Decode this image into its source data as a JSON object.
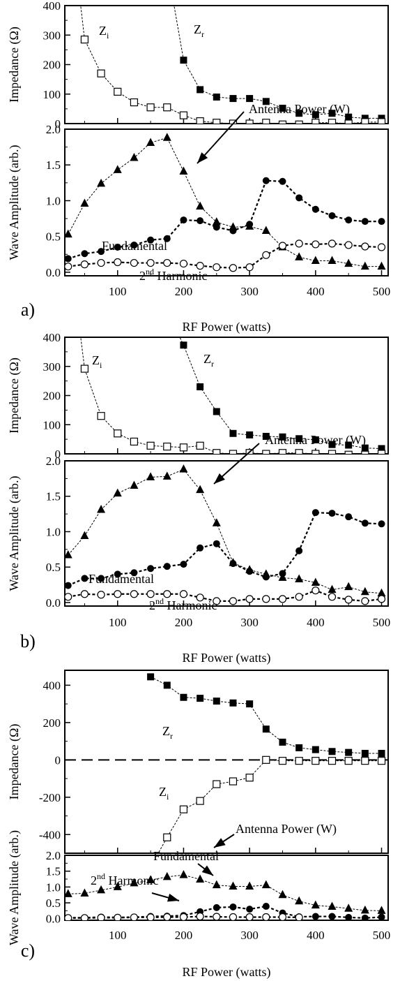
{
  "chart_data": [
    {
      "panel": "a)",
      "type": "line",
      "xlabel": "RF Power (watts)",
      "xlim": [
        20,
        510
      ],
      "xticks": [
        100,
        200,
        300,
        400,
        500
      ],
      "impedance": {
        "ylabel": "Impedance (Ω)",
        "ylim": [
          0,
          400
        ],
        "yticks": [
          0,
          100,
          200,
          300,
          400
        ],
        "series": [
          {
            "name": "Zr",
            "label_main": "Z",
            "label_sub": "r",
            "marker": "square-filled",
            "x": [
              200,
              225,
              250,
              275,
              300,
              325,
              350,
              375,
              400,
              425,
              450,
              475,
              500
            ],
            "y": [
              215,
              115,
              90,
              85,
              85,
              75,
              52,
              35,
              30,
              35,
              22,
              18,
              18
            ],
            "extend_to": [
              184,
              420
            ]
          },
          {
            "name": "Zi",
            "label_main": "Z",
            "label_sub": "i",
            "marker": "square-open",
            "x": [
              50,
              75,
              100,
              125,
              150,
              175,
              200,
              225,
              250,
              275,
              300,
              325,
              350,
              375,
              400,
              425,
              450,
              475,
              500
            ],
            "y": [
              285,
              170,
              108,
              72,
              55,
              55,
              28,
              8,
              3,
              0,
              0,
              3,
              -3,
              -3,
              3,
              3,
              0,
              5,
              5
            ],
            "extend_to": [
              43,
              420
            ]
          }
        ]
      },
      "wave": {
        "ylabel": "Wave Amplitude (arb.)",
        "ylim": [
          -0.05,
          2.0
        ],
        "yticks": [
          0.0,
          0.5,
          1.0,
          1.5,
          2.0
        ],
        "series": [
          {
            "name": "Antenna Power (W)",
            "marker": "triangle-filled",
            "x": [
              25,
              50,
              75,
              100,
              125,
              150,
              175,
              200,
              225,
              250,
              275,
              300,
              325,
              350,
              375,
              400,
              425,
              450,
              475,
              500
            ],
            "y": [
              0.53,
              0.96,
              1.24,
              1.43,
              1.6,
              1.81,
              1.88,
              1.41,
              0.92,
              0.7,
              0.63,
              0.64,
              0.58,
              0.35,
              0.21,
              0.16,
              0.16,
              0.12,
              0.08,
              0.08
            ]
          },
          {
            "name": "Fundamental",
            "marker": "circle-filled",
            "x": [
              25,
              50,
              75,
              100,
              125,
              150,
              175,
              200,
              225,
              250,
              275,
              300,
              325,
              350,
              375,
              400,
              425,
              450,
              475,
              500
            ],
            "y": [
              0.19,
              0.26,
              0.29,
              0.35,
              0.38,
              0.45,
              0.47,
              0.73,
              0.72,
              0.63,
              0.58,
              0.67,
              1.28,
              1.27,
              1.04,
              0.88,
              0.79,
              0.73,
              0.71,
              0.71
            ]
          },
          {
            "name": "2nd Harmonic",
            "label_main": "2",
            "label_sup": "nd",
            "label_rest": " Harmonic",
            "marker": "circle-open",
            "x": [
              25,
              50,
              75,
              100,
              125,
              150,
              175,
              200,
              225,
              250,
              275,
              300,
              325,
              350,
              375,
              400,
              425,
              450,
              475,
              500
            ],
            "y": [
              0.08,
              0.11,
              0.13,
              0.14,
              0.13,
              0.13,
              0.13,
              0.12,
              0.09,
              0.07,
              0.06,
              0.07,
              0.24,
              0.37,
              0.4,
              0.39,
              0.4,
              0.38,
              0.36,
              0.35
            ]
          }
        ]
      }
    },
    {
      "panel": "b)",
      "type": "line",
      "xlabel": "RF Power (watts)",
      "xlim": [
        20,
        510
      ],
      "xticks": [
        100,
        200,
        300,
        400,
        500
      ],
      "impedance": {
        "ylabel": "Impedance (Ω)",
        "ylim": [
          0,
          400
        ],
        "yticks": [
          0,
          100,
          200,
          300,
          400
        ],
        "series": [
          {
            "name": "Zr",
            "label_main": "Z",
            "label_sub": "r",
            "marker": "square-filled",
            "x": [
              200,
              225,
              250,
              275,
              300,
              325,
              350,
              375,
              400,
              425,
              450,
              475,
              500
            ],
            "y": [
              373,
              230,
              145,
              70,
              65,
              60,
              58,
              52,
              48,
              32,
              30,
              20,
              18
            ],
            "extend_to": [
              190,
              420
            ]
          },
          {
            "name": "Zi",
            "label_main": "Z",
            "label_sub": "i",
            "marker": "square-open",
            "x": [
              50,
              75,
              100,
              125,
              150,
              175,
              200,
              225,
              250,
              275,
              300,
              325,
              350,
              375,
              400,
              425,
              450,
              475,
              500
            ],
            "y": [
              292,
              130,
              70,
              42,
              28,
              25,
              22,
              28,
              3,
              0,
              3,
              0,
              3,
              3,
              0,
              0,
              -3,
              -3,
              0
            ],
            "extend_to": [
              43,
              420
            ]
          }
        ]
      },
      "wave": {
        "ylabel": "Wave Amplitude (arb.)",
        "ylim": [
          -0.05,
          2.0
        ],
        "yticks": [
          0.0,
          0.5,
          1.0,
          1.5,
          2.0
        ],
        "series": [
          {
            "name": "Antenna Power (W)",
            "marker": "triangle-filled",
            "x": [
              25,
              50,
              75,
              100,
              125,
              150,
              175,
              200,
              225,
              250,
              275,
              300,
              325,
              350,
              375,
              400,
              425,
              450,
              475,
              500
            ],
            "y": [
              0.67,
              0.94,
              1.31,
              1.54,
              1.65,
              1.77,
              1.78,
              1.88,
              1.59,
              1.12,
              0.56,
              0.46,
              0.4,
              0.35,
              0.33,
              0.28,
              0.18,
              0.22,
              0.15,
              0.13
            ]
          },
          {
            "name": "Fundamental",
            "marker": "circle-filled",
            "x": [
              25,
              50,
              75,
              100,
              125,
              150,
              175,
              200,
              225,
              250,
              275,
              300,
              325,
              350,
              375,
              400,
              425,
              450,
              475,
              500
            ],
            "y": [
              0.24,
              0.34,
              0.34,
              0.4,
              0.42,
              0.48,
              0.51,
              0.54,
              0.77,
              0.83,
              0.55,
              0.44,
              0.36,
              0.41,
              0.73,
              1.27,
              1.26,
              1.21,
              1.12,
              1.11
            ]
          },
          {
            "name": "2nd Harmonic",
            "label_main": "2",
            "label_sup": "nd",
            "label_rest": " Harmonic",
            "marker": "circle-open",
            "x": [
              25,
              50,
              75,
              100,
              125,
              150,
              175,
              200,
              225,
              250,
              275,
              300,
              325,
              350,
              375,
              400,
              425,
              450,
              475,
              500
            ],
            "y": [
              0.08,
              0.12,
              0.11,
              0.12,
              0.12,
              0.12,
              0.12,
              0.12,
              0.07,
              0.02,
              0.02,
              0.05,
              0.05,
              0.05,
              0.08,
              0.17,
              0.08,
              0.04,
              0.02,
              0.05
            ]
          }
        ]
      }
    },
    {
      "panel": "c)",
      "type": "line",
      "xlabel": "RF Power (watts)",
      "xlim": [
        20,
        510
      ],
      "xticks": [
        100,
        200,
        300,
        400,
        500
      ],
      "impedance": {
        "ylabel": "Impedance (Ω)",
        "ylim": [
          -500,
          480
        ],
        "yticks": [
          -400,
          -200,
          0,
          200,
          400
        ],
        "zero_line": true,
        "series": [
          {
            "name": "Zr",
            "label_main": "Z",
            "label_sub": "r",
            "marker": "square-filled",
            "x": [
              150,
              175,
              200,
              225,
              250,
              275,
              300,
              325,
              350,
              375,
              400,
              425,
              450,
              475,
              500
            ],
            "y": [
              445,
              400,
              335,
              330,
              315,
              305,
              300,
              165,
              95,
              65,
              55,
              45,
              40,
              35,
              35
            ]
          },
          {
            "name": "Zi",
            "label_main": "Z",
            "label_sub": "i",
            "marker": "square-open",
            "x": [
              175,
              200,
              225,
              250,
              275,
              300,
              325,
              350,
              375,
              400,
              425,
              450,
              475,
              500
            ],
            "y": [
              -415,
              -265,
              -220,
              -130,
              -115,
              -95,
              0,
              -5,
              -5,
              -5,
              -5,
              -5,
              -5,
              -5
            ],
            "extend_to": [
              160,
              -510
            ]
          }
        ]
      },
      "wave": {
        "ylabel": "Wave Amplitude (arb.)",
        "ylim": [
          -0.05,
          2.0
        ],
        "yticks": [
          0.0,
          0.5,
          1.0,
          1.5,
          2.0
        ],
        "series": [
          {
            "name": "Antenna Power (W)",
            "marker": "triangle-filled",
            "x": [
              25,
              50,
              75,
              100,
              125,
              150,
              175,
              200,
              225,
              250,
              275,
              300,
              325,
              350,
              375,
              400,
              425,
              450,
              475,
              500
            ],
            "y": [
              0.78,
              0.8,
              0.9,
              1.0,
              1.12,
              1.22,
              1.32,
              1.38,
              1.24,
              1.06,
              1.02,
              1.02,
              1.06,
              0.75,
              0.55,
              0.42,
              0.38,
              0.32,
              0.26,
              0.25
            ]
          },
          {
            "name": "Fundamental",
            "marker": "circle-filled",
            "x": [
              25,
              50,
              75,
              100,
              125,
              150,
              175,
              200,
              225,
              250,
              275,
              300,
              325,
              350,
              375,
              400,
              425,
              450,
              475,
              500
            ],
            "y": [
              0.03,
              0.03,
              0.05,
              0.04,
              0.05,
              0.07,
              0.08,
              0.1,
              0.22,
              0.35,
              0.37,
              0.3,
              0.39,
              0.18,
              0.06,
              0.07,
              0.07,
              0.04,
              0.02,
              0.05
            ]
          },
          {
            "name": "2nd Harmonic",
            "label_main": "2",
            "label_sup": "nd",
            "label_rest": " Harmonic",
            "marker": "circle-open",
            "x": [
              25,
              50,
              75,
              100,
              125,
              150,
              175,
              200,
              225,
              250,
              275,
              300,
              325,
              350,
              375
            ],
            "y": [
              0.02,
              0.02,
              0.03,
              0.03,
              0.04,
              0.04,
              0.05,
              0.05,
              0.07,
              0.06,
              0.05,
              0.05,
              0.05,
              0.05,
              0.04
            ]
          }
        ]
      }
    }
  ]
}
